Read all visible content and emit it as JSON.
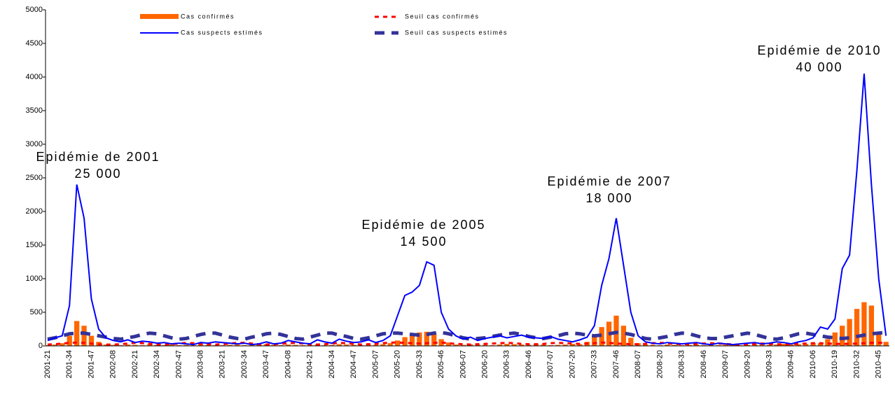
{
  "chart_data": {
    "type": "bar",
    "categories": [
      "2001-21",
      null,
      null,
      "2001-34",
      null,
      null,
      "2001-47",
      null,
      null,
      "2002-08",
      null,
      null,
      "2002-21",
      null,
      null,
      "2002-34",
      null,
      null,
      "2002-47",
      null,
      null,
      "2003-08",
      null,
      null,
      "2003-21",
      null,
      null,
      "2003-34",
      null,
      null,
      "2003-47",
      null,
      null,
      "2004-08",
      null,
      null,
      "2004-21",
      null,
      null,
      "2004-34",
      null,
      null,
      "2004-47",
      null,
      null,
      "2005-07",
      null,
      null,
      "2005-20",
      null,
      null,
      "2005-33",
      null,
      null,
      "2005-46",
      null,
      null,
      "2006-07",
      null,
      null,
      "2006-20",
      null,
      null,
      "2006-33",
      null,
      null,
      "2006-46",
      null,
      null,
      "2007-07",
      null,
      null,
      "2007-20",
      null,
      null,
      "2007-33",
      null,
      null,
      "2007-46",
      null,
      null,
      "2008-07",
      null,
      null,
      "2008-20",
      null,
      null,
      "2008-33",
      null,
      null,
      "2008-46",
      null,
      null,
      "2009-07",
      null,
      null,
      "2009-20",
      null,
      null,
      "2009-33",
      null,
      null,
      "2009-46",
      null,
      null,
      "2010-06",
      null,
      null,
      "2010-19",
      null,
      null,
      "2010-32",
      null,
      null,
      "2010-45",
      null
    ],
    "series": [
      {
        "name": "Cas confirmés",
        "type": "bar",
        "color": "#ff6600",
        "values": [
          10,
          20,
          40,
          150,
          370,
          300,
          150,
          60,
          20,
          15,
          10,
          20,
          15,
          10,
          25,
          15,
          10,
          20,
          10,
          15,
          10,
          20,
          15,
          10,
          10,
          15,
          20,
          10,
          15,
          20,
          25,
          15,
          10,
          20,
          15,
          10,
          15,
          20,
          10,
          15,
          25,
          20,
          15,
          10,
          20,
          15,
          25,
          40,
          80,
          130,
          170,
          200,
          210,
          190,
          100,
          50,
          20,
          15,
          25,
          20,
          15,
          10,
          20,
          30,
          25,
          20,
          15,
          25,
          20,
          10,
          15,
          20,
          30,
          25,
          60,
          150,
          280,
          360,
          450,
          300,
          120,
          40,
          20,
          15,
          10,
          20,
          15,
          10,
          15,
          20,
          10,
          15,
          10,
          20,
          15,
          10,
          15,
          20,
          25,
          15,
          20,
          30,
          20,
          25,
          30,
          40,
          40,
          100,
          200,
          300,
          400,
          550,
          650,
          600,
          200,
          60
        ]
      },
      {
        "name": "Seuil cas confirmés",
        "type": "line",
        "dash": "small",
        "color": "#ff0000",
        "values": [
          20,
          25,
          35,
          45,
          50,
          45,
          35,
          25,
          20,
          20,
          25,
          35,
          45,
          40,
          30,
          20,
          20,
          25,
          35,
          45,
          40,
          30,
          25,
          20,
          25,
          35,
          45,
          45,
          35,
          25,
          20,
          25,
          30,
          40,
          45,
          35,
          25,
          20,
          25,
          35,
          45,
          40,
          30,
          20,
          25,
          30,
          40,
          50,
          50,
          45,
          40,
          35,
          40,
          45,
          50,
          40,
          30,
          25,
          20,
          25,
          30,
          35,
          40,
          45,
          40,
          30,
          25,
          25,
          30,
          40,
          45,
          40,
          35,
          30,
          35,
          40,
          50,
          45,
          35,
          30,
          25,
          25,
          30,
          40,
          45,
          40,
          30,
          25,
          25,
          30,
          35,
          40,
          35,
          30,
          20,
          20,
          25,
          30,
          35,
          30,
          25,
          20,
          25,
          30,
          35,
          40,
          40,
          35,
          30,
          30,
          30,
          35,
          40,
          45,
          45,
          50
        ]
      },
      {
        "name": "Cas suspects estimés",
        "type": "line",
        "color": "#0000ff",
        "values": [
          80,
          120,
          150,
          600,
          2400,
          1900,
          700,
          250,
          120,
          80,
          60,
          90,
          50,
          70,
          60,
          40,
          50,
          30,
          40,
          30,
          20,
          50,
          40,
          60,
          50,
          40,
          30,
          40,
          20,
          30,
          60,
          30,
          40,
          80,
          60,
          40,
          30,
          90,
          60,
          40,
          100,
          70,
          50,
          60,
          90,
          50,
          80,
          150,
          450,
          750,
          800,
          900,
          1250,
          1200,
          500,
          250,
          150,
          100,
          130,
          80,
          110,
          130,
          150,
          120,
          140,
          160,
          130,
          120,
          110,
          140,
          100,
          80,
          60,
          90,
          130,
          300,
          900,
          1300,
          1900,
          1200,
          500,
          150,
          60,
          40,
          30,
          50,
          40,
          30,
          40,
          50,
          30,
          20,
          40,
          30,
          20,
          30,
          40,
          50,
          30,
          40,
          60,
          50,
          30,
          60,
          80,
          120,
          280,
          250,
          400,
          1150,
          1350,
          2600,
          4050,
          2400,
          1000,
          150
        ]
      },
      {
        "name": "Seuil cas suspects estimés",
        "type": "line",
        "dash": "big",
        "color": "#333399",
        "values": [
          100,
          120,
          150,
          180,
          190,
          190,
          170,
          150,
          130,
          110,
          100,
          120,
          140,
          170,
          190,
          180,
          150,
          120,
          100,
          110,
          140,
          170,
          190,
          190,
          160,
          130,
          110,
          100,
          130,
          150,
          180,
          190,
          170,
          140,
          110,
          100,
          130,
          160,
          190,
          190,
          160,
          140,
          110,
          100,
          120,
          150,
          180,
          190,
          190,
          180,
          170,
          160,
          170,
          190,
          200,
          180,
          150,
          120,
          100,
          110,
          120,
          140,
          160,
          180,
          190,
          170,
          140,
          120,
          110,
          130,
          150,
          180,
          190,
          180,
          160,
          150,
          160,
          180,
          200,
          190,
          170,
          140,
          110,
          100,
          120,
          140,
          170,
          190,
          180,
          150,
          120,
          110,
          110,
          130,
          150,
          170,
          190,
          170,
          140,
          110,
          100,
          120,
          150,
          180,
          190,
          170,
          150,
          130,
          120,
          110,
          120,
          140,
          160,
          180,
          190,
          200
        ]
      }
    ],
    "ylim": [
      0,
      5000
    ],
    "yticks": [
      0,
      500,
      1000,
      1500,
      2000,
      2500,
      3000,
      3500,
      4000,
      4500,
      5000
    ],
    "annotations": [
      {
        "lines": [
          "Epidémie de 2001",
          "25 000"
        ]
      },
      {
        "lines": [
          "Epidémie de 2005",
          "14 500"
        ]
      },
      {
        "lines": [
          "Epidémie de 2007",
          "18 000"
        ]
      },
      {
        "lines": [
          "Epidémie de 2010",
          "40 000"
        ]
      }
    ]
  }
}
